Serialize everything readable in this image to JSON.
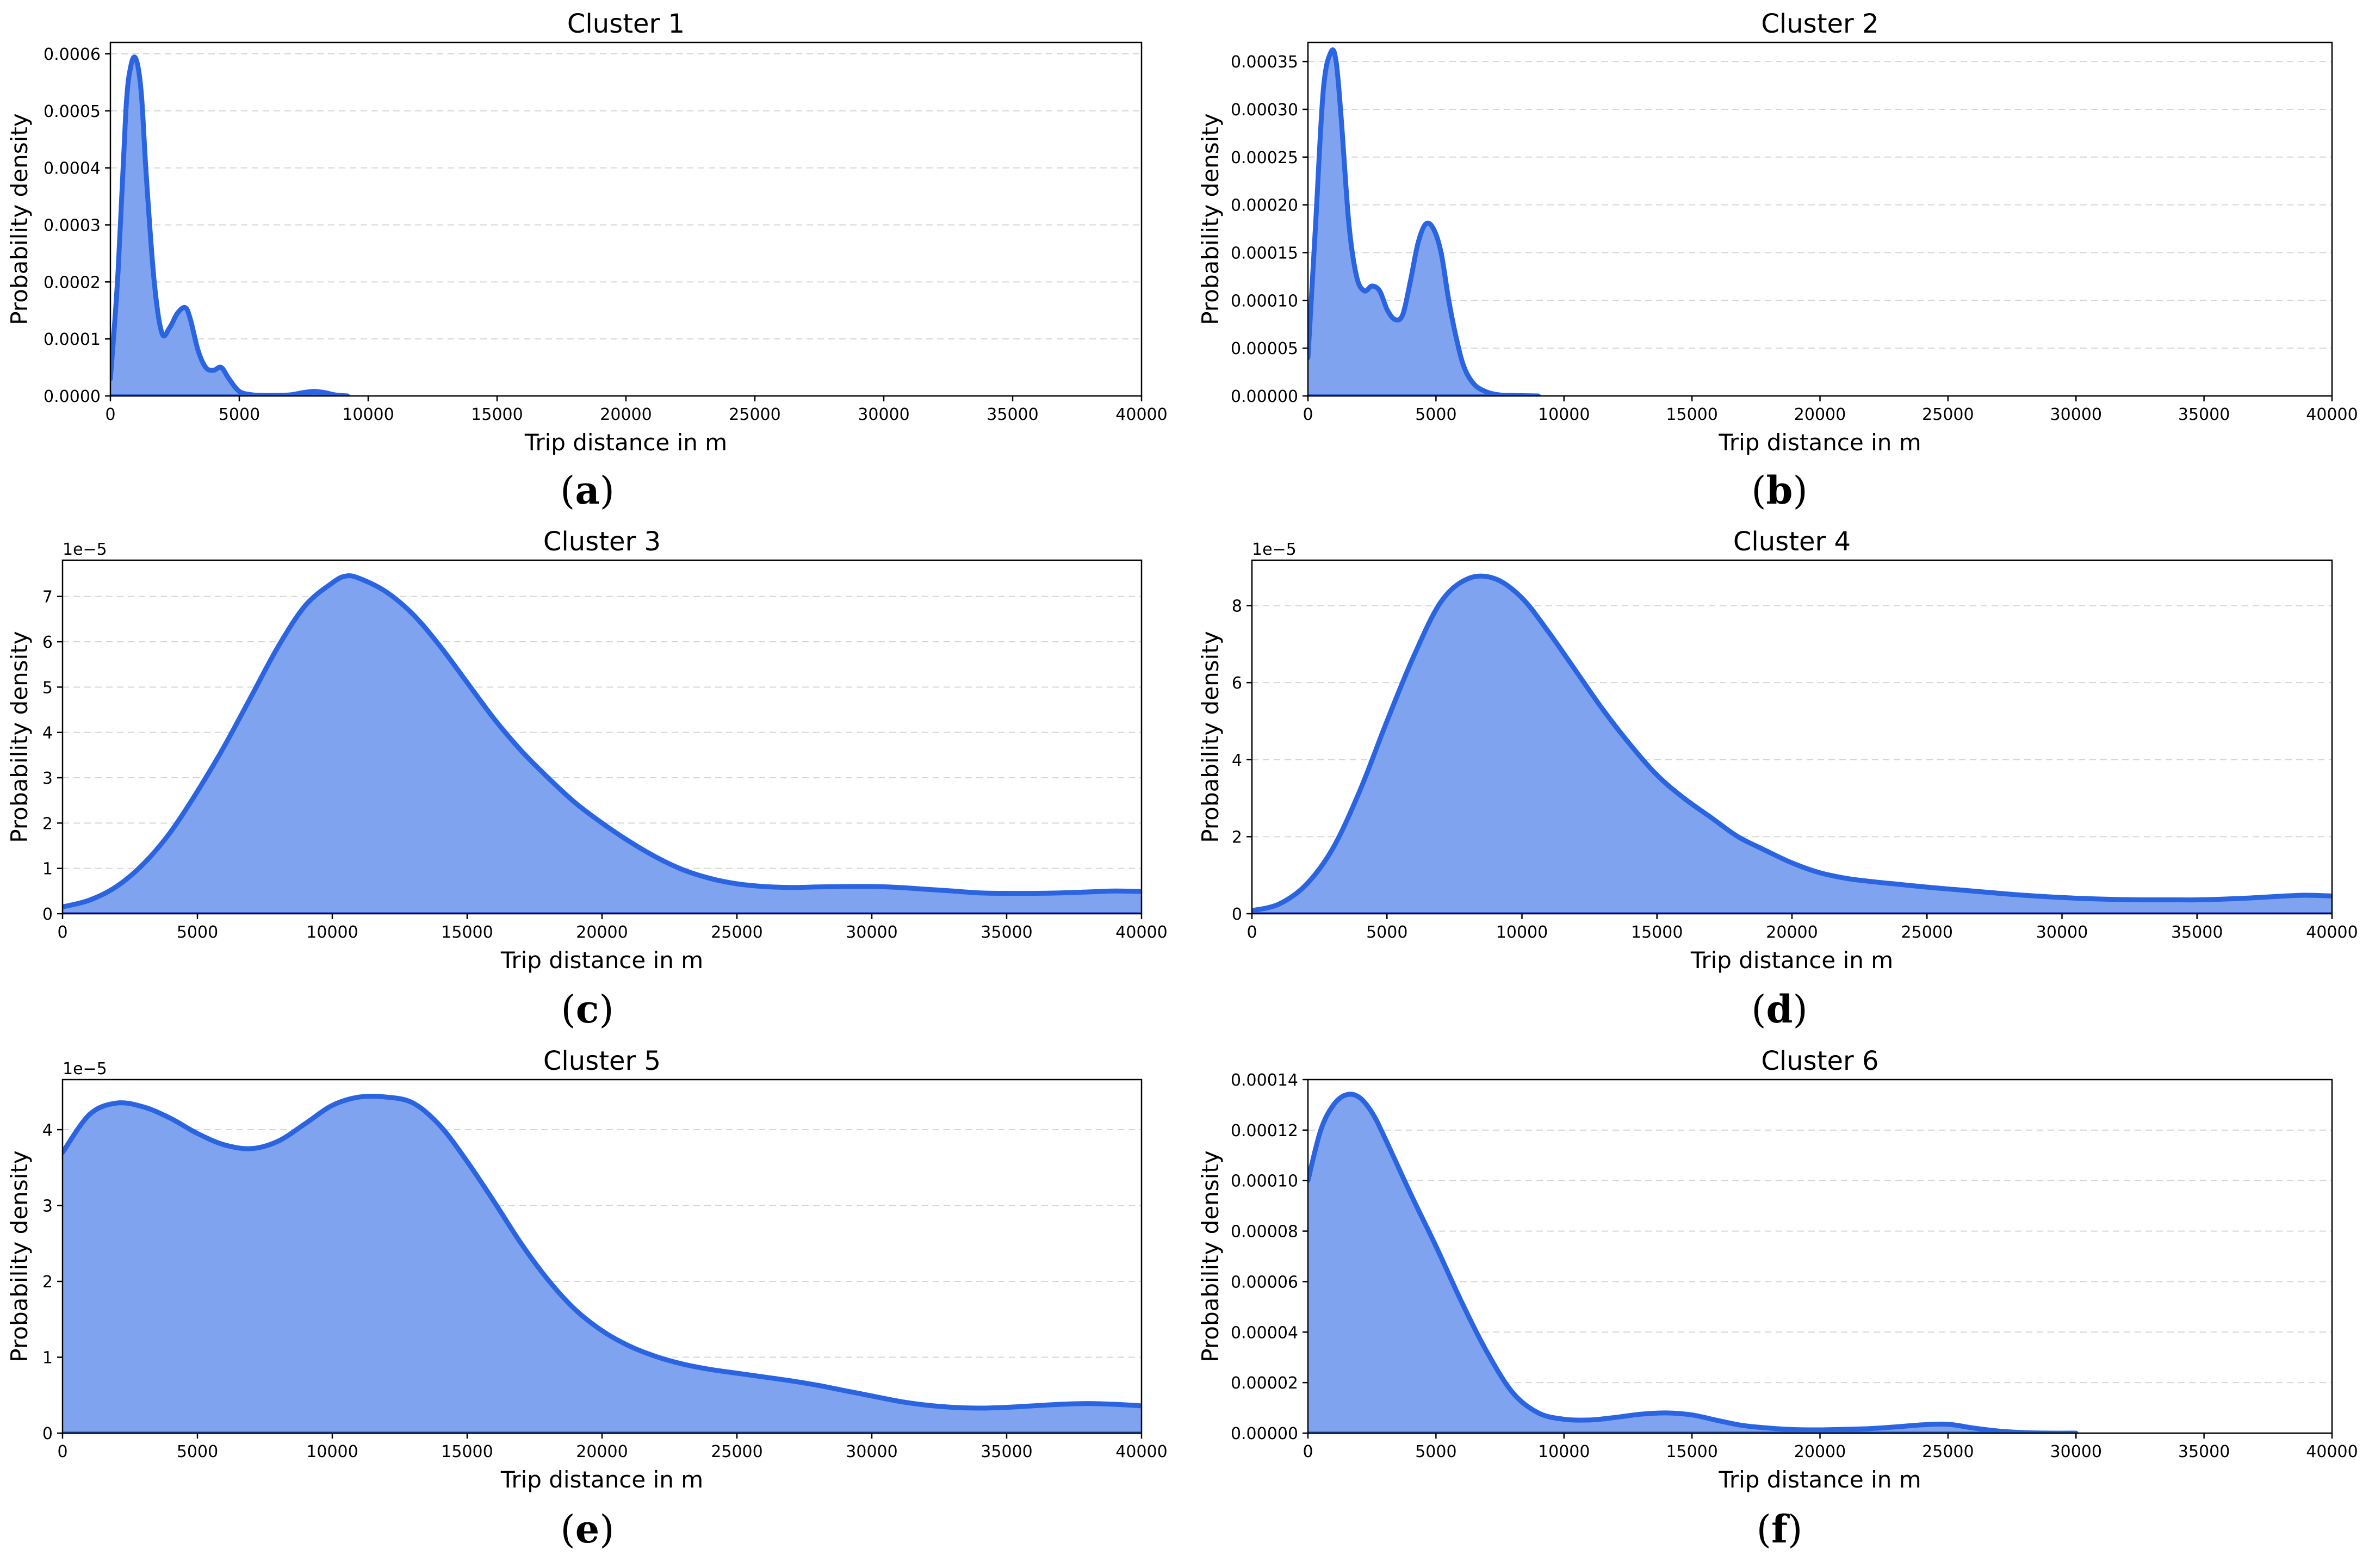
{
  "figure": {
    "panel_labels": [
      {
        "open": "(",
        "letter": "a",
        "close": ")"
      },
      {
        "open": "(",
        "letter": "b",
        "close": ")"
      },
      {
        "open": "(",
        "letter": "c",
        "close": ")"
      },
      {
        "open": "(",
        "letter": "d",
        "close": ")"
      },
      {
        "open": "(",
        "letter": "e",
        "close": ")"
      },
      {
        "open": "(",
        "letter": "f",
        "close": ")"
      }
    ]
  },
  "chart_data": [
    {
      "type": "area",
      "title": "Cluster 1",
      "xlabel": "Trip distance in m",
      "ylabel": "Probability density",
      "xlim": [
        0,
        40000
      ],
      "ylim": [
        0,
        0.00062
      ],
      "xticks": [
        0,
        5000,
        10000,
        15000,
        20000,
        25000,
        30000,
        35000,
        40000
      ],
      "yticks": [
        0,
        0.0001,
        0.0002,
        0.0003,
        0.0004,
        0.0005,
        0.0006
      ],
      "ytick_labels": [
        "0.0000",
        "0.0001",
        "0.0002",
        "0.0003",
        "0.0004",
        "0.0005",
        "0.0006"
      ],
      "offset_label": "",
      "grid": "horizontal-dashed",
      "color": "#2a64e0",
      "fill_color": "#7fa3ef",
      "x": [
        0,
        300,
        600,
        800,
        1000,
        1200,
        1400,
        1700,
        2000,
        2300,
        2600,
        2900,
        3100,
        3400,
        3700,
        4000,
        4300,
        4600,
        5000,
        5500,
        6000,
        6500,
        7000,
        7500,
        7900,
        8300,
        8700,
        9200
      ],
      "y": [
        3e-05,
        0.00022,
        0.0005,
        0.00058,
        0.00059,
        0.00053,
        0.00038,
        0.0002,
        0.00011,
        0.00012,
        0.000145,
        0.000155,
        0.000135,
        8e-05,
        5e-05,
        4.5e-05,
        5e-05,
        3e-05,
        8e-06,
        2e-06,
        1e-06,
        1e-06,
        2e-06,
        6e-06,
        8e-06,
        6e-06,
        2e-06,
        0
      ]
    },
    {
      "type": "area",
      "title": "Cluster 2",
      "xlabel": "Trip distance in m",
      "ylabel": "Probability density",
      "xlim": [
        0,
        40000
      ],
      "ylim": [
        0,
        0.00037
      ],
      "xticks": [
        0,
        5000,
        10000,
        15000,
        20000,
        25000,
        30000,
        35000,
        40000
      ],
      "yticks": [
        0,
        5e-05,
        0.0001,
        0.00015,
        0.0002,
        0.00025,
        0.0003,
        0.00035
      ],
      "ytick_labels": [
        "0.00000",
        "0.00005",
        "0.00010",
        "0.00015",
        "0.00020",
        "0.00025",
        "0.00030",
        "0.00035"
      ],
      "offset_label": "",
      "grid": "horizontal-dashed",
      "color": "#2a64e0",
      "fill_color": "#7fa3ef",
      "x": [
        0,
        300,
        600,
        900,
        1100,
        1300,
        1600,
        1900,
        2200,
        2500,
        2800,
        3100,
        3400,
        3700,
        4000,
        4300,
        4600,
        4900,
        5200,
        5500,
        5800,
        6100,
        6500,
        7000,
        7500,
        8000,
        8500,
        9000
      ],
      "y": [
        4e-05,
        0.00018,
        0.00032,
        0.00036,
        0.00035,
        0.00029,
        0.00018,
        0.000125,
        0.00011,
        0.000115,
        0.00011,
        9e-05,
        8e-05,
        8.5e-05,
        0.00012,
        0.00016,
        0.00018,
        0.000175,
        0.00015,
        0.0001,
        6e-05,
        3e-05,
        1.2e-05,
        4e-06,
        1e-06,
        5e-07,
        2e-07,
        0
      ]
    },
    {
      "type": "area",
      "title": "Cluster 3",
      "xlabel": "Trip distance in m",
      "ylabel": "Probability density",
      "xlim": [
        0,
        40000
      ],
      "ylim": [
        0,
        7.8e-05
      ],
      "xticks": [
        0,
        5000,
        10000,
        15000,
        20000,
        25000,
        30000,
        35000,
        40000
      ],
      "yticks": [
        0,
        1e-05,
        2e-05,
        3e-05,
        4e-05,
        5e-05,
        6e-05,
        7e-05
      ],
      "ytick_labels": [
        "0",
        "1",
        "2",
        "3",
        "4",
        "5",
        "6",
        "7"
      ],
      "offset_label": "1e−5",
      "grid": "horizontal-dashed",
      "color": "#2a64e0",
      "fill_color": "#7fa3ef",
      "x": [
        0,
        1000,
        2000,
        3000,
        4000,
        5000,
        6000,
        7000,
        8000,
        9000,
        10000,
        10500,
        11000,
        12000,
        13000,
        14000,
        15000,
        16000,
        17000,
        18000,
        19000,
        20000,
        21000,
        22000,
        23000,
        24000,
        25000,
        26000,
        27000,
        28000,
        29000,
        30000,
        31000,
        32000,
        33000,
        34000,
        35000,
        36000,
        37000,
        38000,
        39000,
        40000
      ],
      "y": [
        1.5e-06,
        3e-06,
        6e-06,
        1.1e-05,
        1.8e-05,
        2.7e-05,
        3.7e-05,
        4.8e-05,
        5.9e-05,
        6.8e-05,
        7.3e-05,
        7.45e-05,
        7.4e-05,
        7.1e-05,
        6.6e-05,
        5.9e-05,
        5.1e-05,
        4.3e-05,
        3.6e-05,
        3e-05,
        2.45e-05,
        2e-05,
        1.6e-05,
        1.25e-05,
        9.7e-06,
        7.8e-06,
        6.6e-06,
        6e-06,
        5.8e-06,
        5.9e-06,
        6e-06,
        6e-06,
        5.8e-06,
        5.4e-06,
        5e-06,
        4.6e-06,
        4.5e-06,
        4.5e-06,
        4.6e-06,
        4.8e-06,
        5e-06,
        4.9e-06
      ]
    },
    {
      "type": "area",
      "title": "Cluster 4",
      "xlabel": "Trip distance in m",
      "ylabel": "Probability density",
      "xlim": [
        0,
        40000
      ],
      "ylim": [
        0,
        9.18e-05
      ],
      "xticks": [
        0,
        5000,
        10000,
        15000,
        20000,
        25000,
        30000,
        35000,
        40000
      ],
      "yticks": [
        0,
        2e-05,
        4e-05,
        6e-05,
        8e-05
      ],
      "ytick_labels": [
        "0",
        "2",
        "4",
        "6",
        "8"
      ],
      "offset_label": "1e−5",
      "grid": "horizontal-dashed",
      "color": "#2a64e0",
      "fill_color": "#7fa3ef",
      "x": [
        0,
        1000,
        2000,
        3000,
        4000,
        5000,
        6000,
        7000,
        8000,
        9000,
        10000,
        11000,
        12000,
        13000,
        14000,
        15000,
        16000,
        17000,
        18000,
        19000,
        20000,
        21000,
        22000,
        23000,
        24000,
        25000,
        26000,
        27000,
        28000,
        29000,
        30000,
        31000,
        32000,
        33000,
        34000,
        35000,
        36000,
        37000,
        38000,
        39000,
        40000
      ],
      "y": [
        8e-07,
        2.5e-06,
        7.5e-06,
        1.7e-05,
        3.2e-05,
        5e-05,
        6.7e-05,
        8.1e-05,
        8.7e-05,
        8.7e-05,
        8.2e-05,
        7.3e-05,
        6.3e-05,
        5.3e-05,
        4.4e-05,
        3.6e-05,
        3e-05,
        2.5e-05,
        2e-05,
        1.65e-05,
        1.32e-05,
        1.07e-05,
        9.2e-06,
        8.3e-06,
        7.6e-06,
        6.9e-06,
        6.3e-06,
        5.7e-06,
        5.1e-06,
        4.6e-06,
        4.2e-06,
        3.9e-06,
        3.7e-06,
        3.6e-06,
        3.6e-06,
        3.6e-06,
        3.8e-06,
        4.1e-06,
        4.5e-06,
        4.8e-06,
        4.6e-06
      ]
    },
    {
      "type": "area",
      "title": "Cluster 5",
      "xlabel": "Trip distance in m",
      "ylabel": "Probability density",
      "xlim": [
        0,
        40000
      ],
      "ylim": [
        0,
        4.66e-05
      ],
      "xticks": [
        0,
        5000,
        10000,
        15000,
        20000,
        25000,
        30000,
        35000,
        40000
      ],
      "yticks": [
        0,
        1e-05,
        2e-05,
        3e-05,
        4e-05
      ],
      "ytick_labels": [
        "0",
        "1",
        "2",
        "3",
        "4"
      ],
      "offset_label": "1e−5",
      "grid": "horizontal-dashed",
      "color": "#2a64e0",
      "fill_color": "#7fa3ef",
      "x": [
        0,
        1000,
        2000,
        3000,
        4000,
        5000,
        6000,
        7000,
        8000,
        9000,
        10000,
        11000,
        12000,
        13000,
        14000,
        15000,
        16000,
        17000,
        18000,
        19000,
        20000,
        21000,
        22000,
        23000,
        24000,
        25000,
        26000,
        27000,
        28000,
        29000,
        30000,
        31000,
        32000,
        33000,
        34000,
        35000,
        36000,
        37000,
        38000,
        39000,
        40000
      ],
      "y": [
        3.7e-05,
        4.2e-05,
        4.35e-05,
        4.3e-05,
        4.15e-05,
        3.95e-05,
        3.8e-05,
        3.75e-05,
        3.85e-05,
        4.08e-05,
        4.32e-05,
        4.43e-05,
        4.43e-05,
        4.35e-05,
        4.05e-05,
        3.58e-05,
        3.05e-05,
        2.5e-05,
        2.02e-05,
        1.63e-05,
        1.35e-05,
        1.15e-05,
        1.01e-05,
        9.1e-06,
        8.4e-06,
        7.9e-06,
        7.4e-06,
        6.9e-06,
        6.3e-06,
        5.6e-06,
        4.9e-06,
        4.2e-06,
        3.7e-06,
        3.4e-06,
        3.3e-06,
        3.4e-06,
        3.6e-06,
        3.8e-06,
        3.9e-06,
        3.8e-06,
        3.6e-06
      ]
    },
    {
      "type": "area",
      "title": "Cluster 6",
      "xlabel": "Trip distance in m",
      "ylabel": "Probability density",
      "xlim": [
        0,
        40000
      ],
      "ylim": [
        0,
        0.00014
      ],
      "xticks": [
        0,
        5000,
        10000,
        15000,
        20000,
        25000,
        30000,
        35000,
        40000
      ],
      "yticks": [
        0,
        2e-05,
        4e-05,
        6e-05,
        8e-05,
        0.0001,
        0.00012,
        0.00014
      ],
      "ytick_labels": [
        "0.00000",
        "0.00002",
        "0.00004",
        "0.00006",
        "0.00008",
        "0.00010",
        "0.00012",
        "0.00014"
      ],
      "offset_label": "",
      "grid": "horizontal-dashed",
      "color": "#2a64e0",
      "fill_color": "#7fa3ef",
      "x": [
        0,
        500,
        1000,
        1500,
        2000,
        2500,
        3000,
        4000,
        5000,
        6000,
        7000,
        8000,
        9000,
        10000,
        11000,
        12000,
        13000,
        14000,
        15000,
        16000,
        17000,
        18000,
        19000,
        20000,
        21000,
        22000,
        23000,
        24000,
        25000,
        26000,
        27000,
        28000,
        29000,
        30000
      ],
      "y": [
        0.0001,
        0.00012,
        0.00013,
        0.000134,
        0.000133,
        0.000127,
        0.000117,
        9.5e-05,
        7.4e-05,
        5.2e-05,
        3.2e-05,
        1.6e-05,
        8e-06,
        5.5e-06,
        5.2e-06,
        6.2e-06,
        7.5e-06,
        8e-06,
        7.2e-06,
        5e-06,
        3e-06,
        2e-06,
        1.4e-06,
        1.3e-06,
        1.5e-06,
        1.8e-06,
        2.5e-06,
        3.3e-06,
        3.5e-06,
        2e-06,
        8e-07,
        2e-07,
        0,
        0
      ]
    }
  ]
}
